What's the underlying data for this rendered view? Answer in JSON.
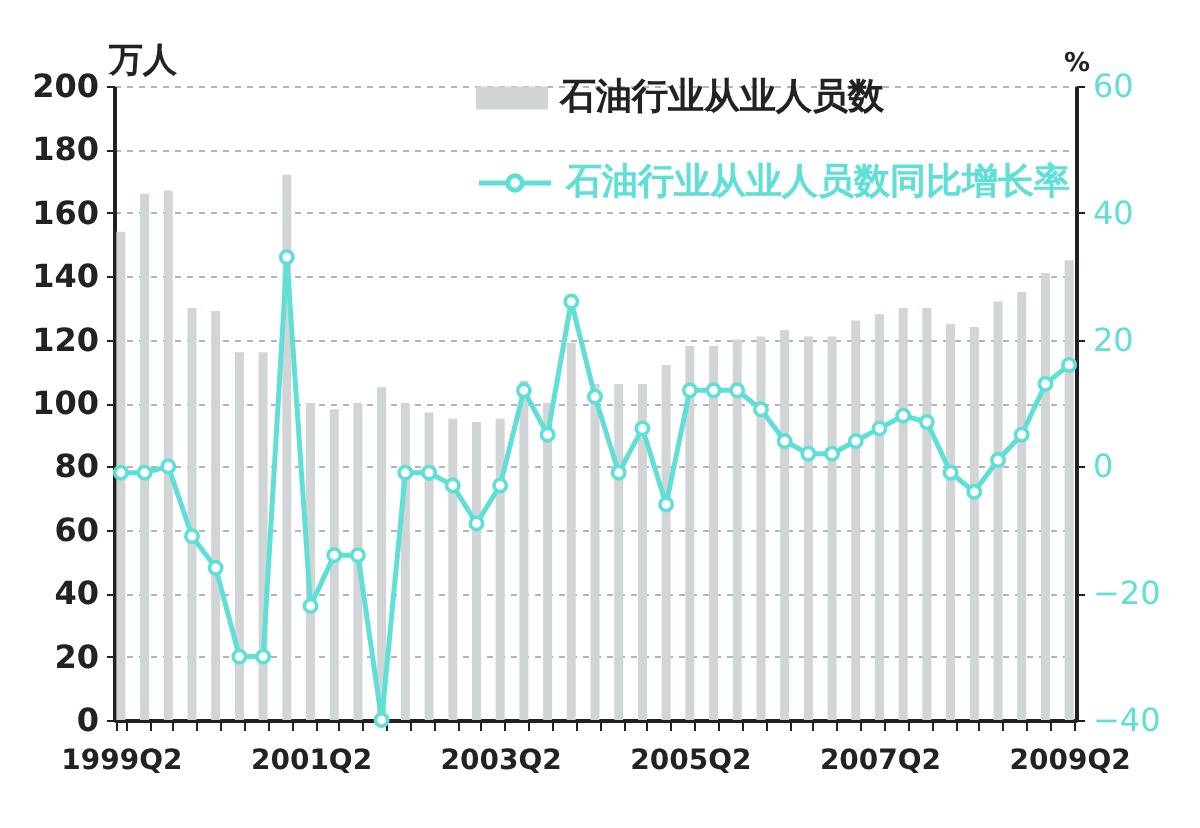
{
  "chart_data": {
    "type": "bar",
    "categories": [
      "1999Q2",
      null,
      null,
      null,
      null,
      null,
      null,
      null,
      "2001Q2",
      null,
      null,
      null,
      null,
      null,
      null,
      null,
      "2003Q2",
      null,
      null,
      null,
      null,
      null,
      null,
      null,
      "2005Q2",
      null,
      null,
      null,
      null,
      null,
      null,
      null,
      "2007Q2",
      null,
      null,
      null,
      null,
      null,
      null,
      null,
      "2009Q2"
    ],
    "ylabel": "万人",
    "y2label": "%",
    "ylim": [
      0,
      200
    ],
    "yticks": [
      0,
      20,
      40,
      60,
      80,
      100,
      120,
      140,
      160,
      180,
      200
    ],
    "y2lim": [
      -40,
      60
    ],
    "y2ticks": [
      -40,
      -20,
      0,
      20,
      40,
      60
    ],
    "grid": "y",
    "legend": "top right",
    "marker": "circle",
    "line_style": "solid",
    "series": [
      {
        "name": "石油行业从业人员数",
        "color": "#d2d5d5",
        "values": [
          154,
          166,
          167,
          130,
          129,
          116,
          116,
          172,
          100,
          98,
          100,
          105,
          100,
          97,
          95,
          94,
          95,
          107,
          100,
          119,
          106,
          106,
          106,
          112,
          118,
          118,
          120,
          121,
          123,
          121,
          121,
          126,
          128,
          130,
          130,
          125,
          124,
          132,
          135,
          141,
          145
        ]
      },
      {
        "name": "石油行业从业人员数同比增长率",
        "type": "line",
        "axis": "y2",
        "color": "#5fdfd6",
        "values": [
          -1,
          -1,
          0,
          -11,
          -16,
          -30,
          -30,
          33,
          -22,
          -14,
          -14,
          -40,
          -1,
          -1,
          -3,
          -9,
          -3,
          12,
          5,
          26,
          11,
          -1,
          6,
          -6,
          12,
          12,
          12,
          9,
          4,
          2,
          2,
          4,
          6,
          8,
          7,
          -1,
          -4,
          1,
          5,
          13,
          16
        ]
      }
    ]
  }
}
